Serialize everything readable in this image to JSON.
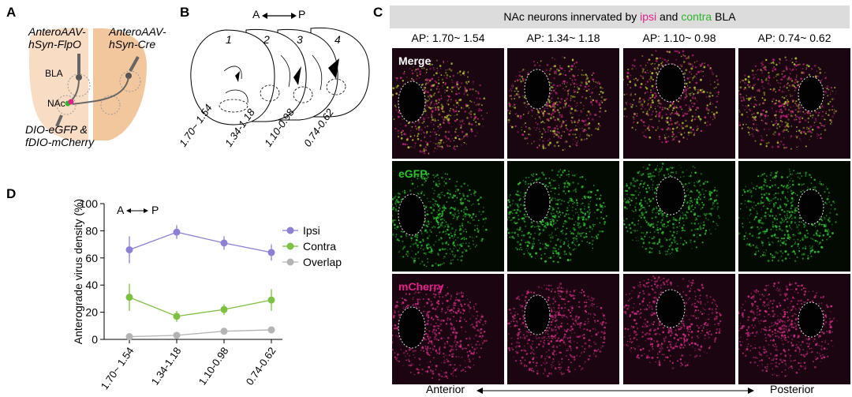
{
  "panels": {
    "a": "A",
    "b": "B",
    "c": "C",
    "d": "D"
  },
  "panel_a": {
    "left_virus_line1": "AnteroAAV-",
    "left_virus_line2": "hSyn-FlpO",
    "right_virus_line1": "AnteroAAV-",
    "right_virus_line2": "hSyn-Cre",
    "bla": "BLA",
    "nac": "NAc",
    "reporter_line1": "DIO-eGFP &",
    "reporter_line2": "fDIO-mCherry"
  },
  "panel_b": {
    "axis_a": "A",
    "axis_p": "P",
    "section_numbers": [
      "1",
      "2",
      "3",
      "4"
    ],
    "section_labels": [
      "1.70~ 1.54",
      "1.34-1.18",
      "1.10-0.98",
      "0.74-0.62"
    ]
  },
  "panel_c": {
    "title_pre": "NAc neurons innervated by ",
    "title_ipsi": "ipsi",
    "title_mid": " and ",
    "title_contra": "contra",
    "title_post": " BLA",
    "ap_labels": [
      "AP: 1.70~ 1.54",
      "AP: 1.34~ 1.18",
      "AP: 1.10~ 0.98",
      "AP: 0.74~ 0.62"
    ],
    "row_labels": [
      "Merge",
      "eGFP",
      "mCherry"
    ],
    "anterior": "Anterior",
    "posterior": "Posterior",
    "colors": {
      "ipsi": "#e0218a",
      "contra": "#2bb52b"
    }
  },
  "panel_d": {
    "axis_a": "A",
    "axis_p": "P"
  },
  "chart_data": {
    "type": "line",
    "title": "",
    "ylabel": "Anterograde virus density (%)",
    "xlabel": "",
    "categories": [
      "1.70~ 1.54",
      "1.34-1.18",
      "1.10-0.98",
      "0.74-0.62"
    ],
    "ylim": [
      0,
      100
    ],
    "yticks": [
      0,
      20,
      40,
      60,
      80,
      100
    ],
    "legend_position": "right",
    "series": [
      {
        "name": "Ipsi",
        "color": "#8b80d6",
        "values": [
          66,
          79,
          71,
          64
        ],
        "errors": [
          10,
          5,
          5,
          6
        ]
      },
      {
        "name": "Contra",
        "color": "#7dc142",
        "values": [
          31,
          17,
          22,
          29
        ],
        "errors": [
          10,
          4,
          4,
          8
        ]
      },
      {
        "name": "Overlap",
        "color": "#b4b4b4",
        "values": [
          2,
          3,
          6,
          7
        ],
        "errors": [
          1,
          1,
          1,
          1
        ]
      }
    ]
  }
}
